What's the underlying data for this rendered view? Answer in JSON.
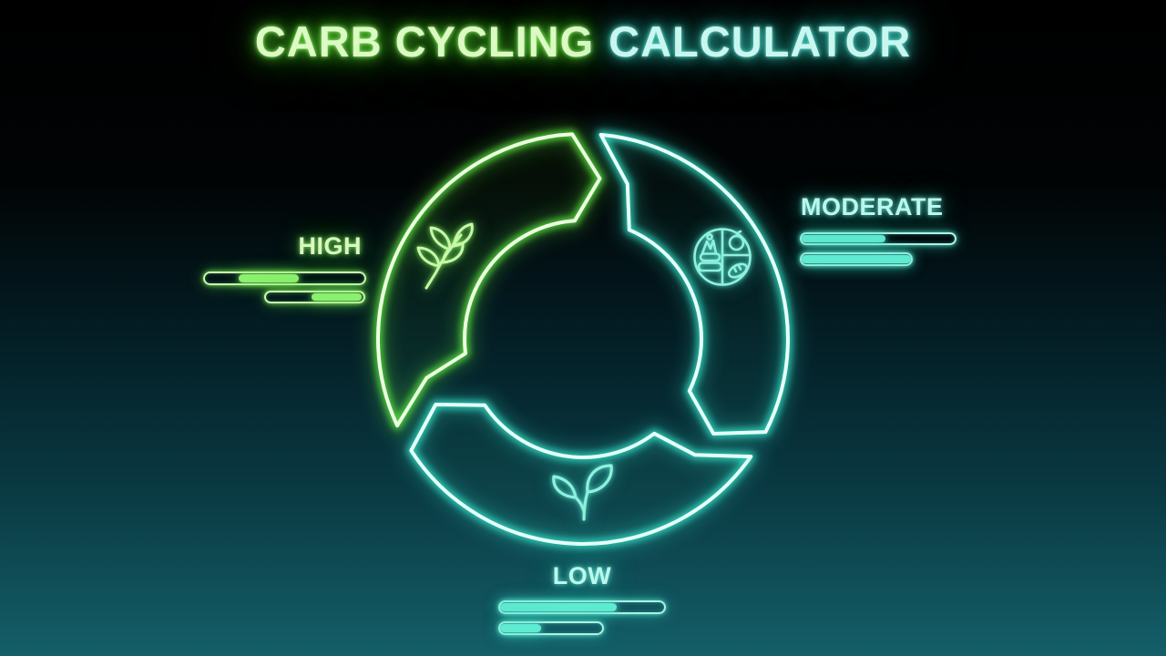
{
  "title": {
    "text_green": "CARB CYCLING",
    "text_cyan": "CALCULATOR"
  },
  "cycle": {
    "segments": [
      {
        "name": "high",
        "label": "HIGH",
        "icon": "wheat-icon",
        "theme": "green",
        "bars": [
          {
            "fill_start_pct": 21,
            "fill_end_pct": 59
          },
          {
            "fill_start_pct": 47,
            "fill_end_pct": 98
          }
        ]
      },
      {
        "name": "moderate",
        "label": "MODERATE",
        "icon": "nutrition-plate-icon",
        "theme": "cyan",
        "bars": [
          {
            "fill_start_pct": 0,
            "fill_end_pct": 55
          },
          {
            "fill_start_pct": 0,
            "fill_end_pct": 100
          }
        ]
      },
      {
        "name": "low",
        "label": "LOW",
        "icon": "sprout-icon",
        "theme": "cyan",
        "bars": [
          {
            "fill_start_pct": 0,
            "fill_end_pct": 71
          },
          {
            "fill_start_pct": 0,
            "fill_end_pct": 40
          }
        ]
      }
    ]
  },
  "colors": {
    "green_neon": "#5fe943",
    "green_core": "#ecffe0",
    "green_text": "#d8f9bf",
    "green_fill": "#8af06d",
    "cyan_neon": "#35e3c9",
    "cyan_core": "#e6fffa",
    "cyan_text": "#bdf6ec",
    "cyan_fill": "#5fead2",
    "bg_top": "#000000",
    "bg_bottom": "#145f69"
  }
}
